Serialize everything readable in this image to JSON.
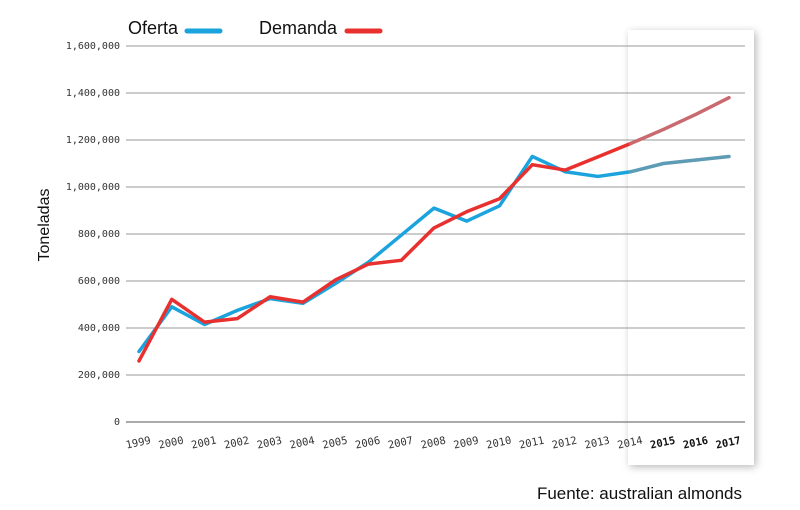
{
  "chart_data": {
    "type": "line",
    "ylabel": "Toneladas",
    "source": "Fuente: australian almonds",
    "x": [
      "1999",
      "2000",
      "2001",
      "2002",
      "2003",
      "2004",
      "2005",
      "2006",
      "2007",
      "2008",
      "2009",
      "2010",
      "2011",
      "2012",
      "2013",
      "2014",
      "2015",
      "2016",
      "2017"
    ],
    "bold_from_index": 16,
    "projection_from_index": 15,
    "ylim": [
      0,
      1600000
    ],
    "yticks": [
      0,
      200000,
      400000,
      600000,
      800000,
      1000000,
      1200000,
      1400000,
      1600000
    ],
    "ytick_labels": [
      "0",
      "200,000",
      "400,000",
      "600,000",
      "800,000",
      "1,000,000",
      "1,200,000",
      "1,400,000",
      "1,600,000"
    ],
    "grid": true,
    "legend_position": "top-left",
    "series": [
      {
        "name": "Oferta",
        "color": "#1aa3dd",
        "projection_color": "#5e9bb4",
        "values": [
          300000,
          490000,
          415000,
          475000,
          525000,
          505000,
          590000,
          680000,
          795000,
          910000,
          855000,
          920000,
          1130000,
          1065000,
          1045000,
          1065000,
          1100000,
          1115000,
          1130000
        ]
      },
      {
        "name": "Demanda",
        "color": "#e8302e",
        "projection_color": "#c86a6f",
        "values": [
          260000,
          522000,
          425000,
          440000,
          533000,
          510000,
          605000,
          672000,
          688000,
          826000,
          895000,
          950000,
          1095000,
          1072000,
          1128000,
          1185000,
          1245000,
          1310000,
          1380000
        ]
      }
    ]
  }
}
